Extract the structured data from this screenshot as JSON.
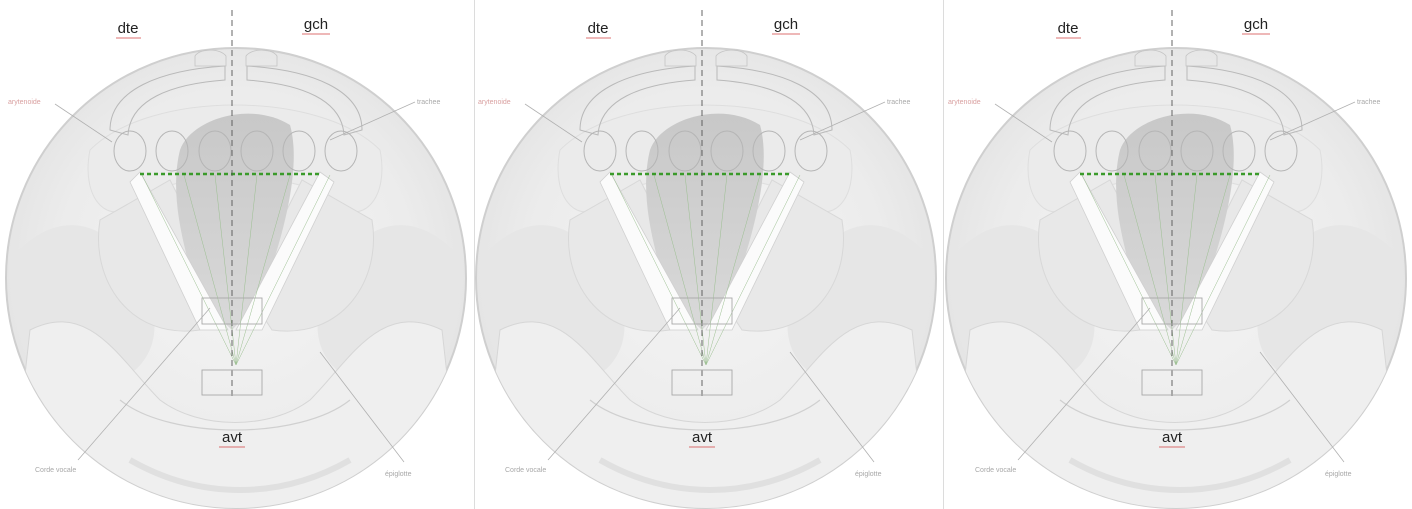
{
  "panels": [
    {
      "right": "dte",
      "left": "gch",
      "anterior": "avt",
      "arytenoid": "arytenoide",
      "trachea": "trachee",
      "vocal_cord": "Corde vocale",
      "epiglottis": "épiglotte"
    },
    {
      "right": "dte",
      "left": "gch",
      "anterior": "avt",
      "arytenoid": "arytenoide",
      "trachea": "trachee",
      "vocal_cord": "Corde vocale",
      "epiglottis": "épiglotte"
    },
    {
      "right": "dte",
      "left": "gch",
      "anterior": "avt",
      "arytenoid": "arytenoide",
      "trachea": "trachee",
      "vocal_cord": "Corde vocale",
      "epiglottis": "épiglotte"
    }
  ],
  "colors": {
    "guide_line": "#3a9a2a",
    "label_underline": "#d04040",
    "background": "#ffffff"
  }
}
